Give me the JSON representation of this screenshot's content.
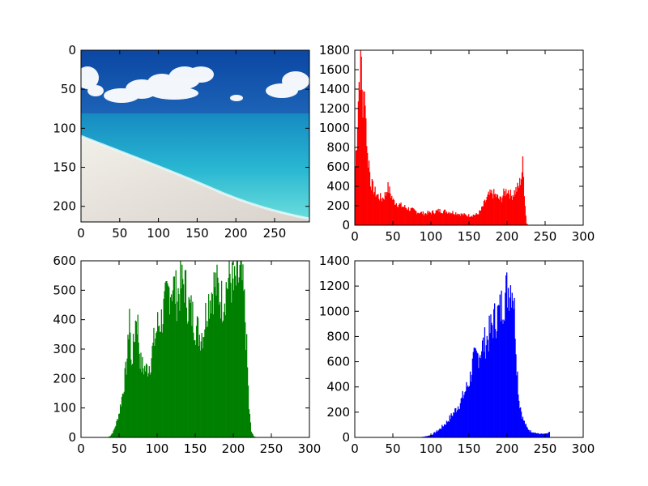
{
  "chart_data": [
    {
      "type": "image",
      "xlim": [
        0,
        295
      ],
      "ylim": [
        220,
        0
      ],
      "xticks": [
        "0",
        "50",
        "100",
        "150",
        "200",
        "250"
      ],
      "yticks": [
        "0",
        "50",
        "100",
        "150",
        "200"
      ],
      "colors": {
        "sky_top": "#0d4fae",
        "sky_low": "#2f8bd6",
        "sea_far": "#1a8fc4",
        "sea_near": "#3ed0d8",
        "sand": "#e6e2dd",
        "cloud": "#ffffff"
      }
    },
    {
      "type": "bar",
      "channel": "red",
      "color": "#ff0000",
      "xlim": [
        0,
        300
      ],
      "ylim": [
        0,
        1800
      ],
      "xticks": [
        "0",
        "50",
        "100",
        "150",
        "200",
        "250",
        "300"
      ],
      "yticks": [
        "0",
        "200",
        "400",
        "600",
        "800",
        "1000",
        "1200",
        "1400",
        "1600",
        "1800"
      ],
      "anchors": [
        [
          0,
          600
        ],
        [
          2,
          900
        ],
        [
          4,
          1300
        ],
        [
          6,
          1640
        ],
        [
          8,
          1680
        ],
        [
          10,
          1200
        ],
        [
          12,
          1300
        ],
        [
          13,
          1450
        ],
        [
          14,
          1100
        ],
        [
          16,
          700
        ],
        [
          18,
          650
        ],
        [
          20,
          450
        ],
        [
          25,
          350
        ],
        [
          30,
          300
        ],
        [
          35,
          270
        ],
        [
          40,
          320
        ],
        [
          42,
          400
        ],
        [
          45,
          350
        ],
        [
          50,
          250
        ],
        [
          60,
          200
        ],
        [
          70,
          170
        ],
        [
          80,
          140
        ],
        [
          90,
          120
        ],
        [
          100,
          130
        ],
        [
          110,
          150
        ],
        [
          120,
          140
        ],
        [
          130,
          130
        ],
        [
          140,
          110
        ],
        [
          150,
          100
        ],
        [
          160,
          110
        ],
        [
          165,
          150
        ],
        [
          170,
          230
        ],
        [
          175,
          300
        ],
        [
          180,
          330
        ],
        [
          185,
          300
        ],
        [
          190,
          260
        ],
        [
          195,
          320
        ],
        [
          200,
          370
        ],
        [
          205,
          300
        ],
        [
          210,
          350
        ],
        [
          215,
          400
        ],
        [
          218,
          500
        ],
        [
          220,
          620
        ],
        [
          222,
          350
        ],
        [
          224,
          100
        ],
        [
          225,
          20
        ],
        [
          227,
          0
        ],
        [
          256,
          0
        ]
      ]
    },
    {
      "type": "bar",
      "channel": "green",
      "color": "#008000",
      "xlim": [
        0,
        300
      ],
      "ylim": [
        0,
        600
      ],
      "xticks": [
        "0",
        "50",
        "100",
        "150",
        "200",
        "250",
        "300"
      ],
      "yticks": [
        "0",
        "100",
        "200",
        "300",
        "400",
        "500",
        "600"
      ],
      "anchors": [
        [
          0,
          0
        ],
        [
          34,
          0
        ],
        [
          38,
          5
        ],
        [
          42,
          20
        ],
        [
          46,
          50
        ],
        [
          50,
          90
        ],
        [
          54,
          150
        ],
        [
          58,
          220
        ],
        [
          61,
          300
        ],
        [
          63,
          450
        ],
        [
          65,
          250
        ],
        [
          68,
          300
        ],
        [
          70,
          360
        ],
        [
          72,
          420
        ],
        [
          74,
          380
        ],
        [
          76,
          300
        ],
        [
          78,
          250
        ],
        [
          80,
          240
        ],
        [
          85,
          230
        ],
        [
          90,
          250
        ],
        [
          95,
          320
        ],
        [
          100,
          380
        ],
        [
          105,
          400
        ],
        [
          110,
          450
        ],
        [
          115,
          500
        ],
        [
          120,
          520
        ],
        [
          125,
          480
        ],
        [
          130,
          510
        ],
        [
          135,
          530
        ],
        [
          140,
          450
        ],
        [
          145,
          420
        ],
        [
          150,
          380
        ],
        [
          155,
          350
        ],
        [
          160,
          360
        ],
        [
          165,
          450
        ],
        [
          170,
          490
        ],
        [
          175,
          520
        ],
        [
          180,
          500
        ],
        [
          185,
          460
        ],
        [
          190,
          510
        ],
        [
          195,
          550
        ],
        [
          200,
          500
        ],
        [
          205,
          540
        ],
        [
          210,
          550
        ],
        [
          214,
          450
        ],
        [
          217,
          300
        ],
        [
          220,
          100
        ],
        [
          223,
          20
        ],
        [
          226,
          5
        ],
        [
          230,
          0
        ],
        [
          256,
          0
        ]
      ]
    },
    {
      "type": "bar",
      "channel": "blue",
      "color": "#0000ff",
      "xlim": [
        0,
        300
      ],
      "ylim": [
        0,
        1400
      ],
      "xticks": [
        "0",
        "50",
        "100",
        "150",
        "200",
        "250",
        "300"
      ],
      "yticks": [
        "0",
        "200",
        "400",
        "600",
        "800",
        "1000",
        "1200",
        "1400"
      ],
      "anchors": [
        [
          0,
          0
        ],
        [
          80,
          0
        ],
        [
          90,
          5
        ],
        [
          100,
          20
        ],
        [
          110,
          60
        ],
        [
          120,
          120
        ],
        [
          130,
          200
        ],
        [
          140,
          300
        ],
        [
          150,
          450
        ],
        [
          155,
          600
        ],
        [
          160,
          640
        ],
        [
          165,
          700
        ],
        [
          170,
          750
        ],
        [
          175,
          800
        ],
        [
          180,
          900
        ],
        [
          185,
          950
        ],
        [
          190,
          1000
        ],
        [
          195,
          1100
        ],
        [
          200,
          1180
        ],
        [
          205,
          1220
        ],
        [
          207,
          1200
        ],
        [
          210,
          900
        ],
        [
          212,
          600
        ],
        [
          215,
          300
        ],
        [
          220,
          150
        ],
        [
          225,
          80
        ],
        [
          230,
          50
        ],
        [
          235,
          40
        ],
        [
          240,
          30
        ],
        [
          250,
          25
        ],
        [
          255,
          40
        ],
        [
          258,
          30
        ],
        [
          260,
          0
        ],
        [
          300,
          0
        ]
      ]
    }
  ]
}
